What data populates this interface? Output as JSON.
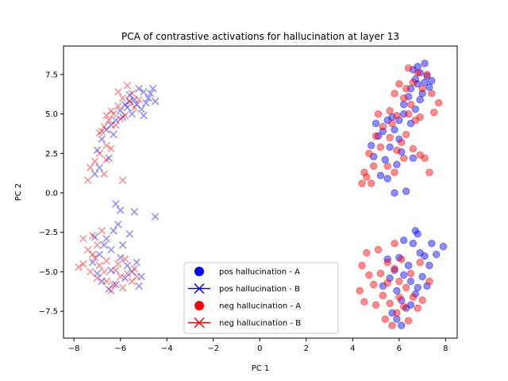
{
  "chart_data": {
    "type": "scatter",
    "title": "PCA of contrastive activations for hallucination at layer 13",
    "xlabel": "PC 1",
    "ylabel": "PC 2",
    "xlim": [
      -8.45,
      8.5
    ],
    "ylim": [
      -9.2,
      9.3
    ],
    "xticks": [
      -8,
      -6,
      -4,
      -2,
      0,
      2,
      4,
      6,
      8
    ],
    "yticks": [
      -7.5,
      -5.0,
      -2.5,
      0.0,
      2.5,
      5.0,
      7.5
    ],
    "grid": false,
    "legend_position": "lower-center",
    "series": [
      {
        "name": "pos hallucination - A",
        "marker": "circle",
        "color": "#0000ff",
        "points": [
          [
            6.7,
            7.2
          ],
          [
            6.9,
            7.6
          ],
          [
            7.1,
            7.0
          ],
          [
            6.5,
            6.6
          ],
          [
            6.8,
            6.9
          ],
          [
            7.2,
            7.4
          ],
          [
            6.6,
            7.8
          ],
          [
            7.0,
            6.3
          ],
          [
            6.4,
            6.1
          ],
          [
            6.9,
            5.9
          ],
          [
            7.3,
            6.7
          ],
          [
            6.2,
            5.6
          ],
          [
            6.7,
            5.3
          ],
          [
            7.1,
            8.2
          ],
          [
            6.8,
            8.0
          ],
          [
            7.4,
            7.1
          ],
          [
            5.5,
            4.6
          ],
          [
            5.3,
            3.9
          ],
          [
            5.8,
            4.0
          ],
          [
            6.0,
            3.4
          ],
          [
            5.1,
            3.6
          ],
          [
            5.6,
            2.9
          ],
          [
            4.9,
            2.3
          ],
          [
            5.4,
            2.1
          ],
          [
            5.9,
            1.8
          ],
          [
            6.1,
            2.6
          ],
          [
            5.2,
            1.1
          ],
          [
            6.3,
            0.1
          ],
          [
            5.8,
            0.0
          ],
          [
            6.5,
            4.4
          ],
          [
            6.2,
            5.0
          ],
          [
            5.0,
            4.4
          ],
          [
            5.7,
            4.8
          ],
          [
            4.8,
            3.0
          ],
          [
            5.5,
            0.9
          ],
          [
            6.0,
            4.6
          ],
          [
            6.6,
            2.2
          ],
          [
            6.8,
            -2.6
          ],
          [
            6.6,
            -3.2
          ],
          [
            6.9,
            -3.8
          ],
          [
            7.1,
            -4.0
          ],
          [
            6.4,
            -4.6
          ],
          [
            6.2,
            -5.2
          ],
          [
            6.5,
            -5.6
          ],
          [
            6.8,
            -6.0
          ],
          [
            7.0,
            -5.3
          ],
          [
            7.3,
            -4.6
          ],
          [
            7.6,
            -3.9
          ],
          [
            7.9,
            -3.4
          ],
          [
            6.0,
            -4.1
          ],
          [
            5.8,
            -4.9
          ],
          [
            5.6,
            -5.4
          ],
          [
            5.9,
            -6.2
          ],
          [
            6.1,
            -6.8
          ],
          [
            6.3,
            -7.3
          ],
          [
            6.5,
            -7.1
          ],
          [
            6.7,
            -6.4
          ],
          [
            5.7,
            -7.6
          ],
          [
            5.9,
            -8.0
          ],
          [
            6.1,
            -8.4
          ],
          [
            6.7,
            -2.4
          ],
          [
            7.2,
            -5.9
          ],
          [
            5.5,
            -4.2
          ],
          [
            5.3,
            -5.9
          ],
          [
            6.2,
            -3.0
          ],
          [
            7.4,
            -3.2
          ]
        ]
      },
      {
        "name": "pos hallucination - B",
        "marker": "x",
        "color": "#0000ff",
        "points": [
          [
            -5.6,
            6.2
          ],
          [
            -5.4,
            5.9
          ],
          [
            -5.2,
            6.6
          ],
          [
            -5.0,
            6.4
          ],
          [
            -4.8,
            6.0
          ],
          [
            -4.6,
            6.6
          ],
          [
            -5.8,
            5.6
          ],
          [
            -6.0,
            5.2
          ],
          [
            -5.7,
            5.4
          ],
          [
            -5.5,
            5.0
          ],
          [
            -5.3,
            5.6
          ],
          [
            -6.2,
            4.6
          ],
          [
            -6.4,
            4.3
          ],
          [
            -6.6,
            4.0
          ],
          [
            -5.9,
            4.8
          ],
          [
            -5.1,
            5.3
          ],
          [
            -4.9,
            5.7
          ],
          [
            -4.5,
            5.8
          ],
          [
            -6.8,
            3.4
          ],
          [
            -7.0,
            2.7
          ],
          [
            -6.5,
            2.2
          ],
          [
            -6.9,
            1.6
          ],
          [
            -7.1,
            1.2
          ],
          [
            -6.3,
            3.7
          ],
          [
            -5.0,
            4.9
          ],
          [
            -4.7,
            6.3
          ],
          [
            -5.6,
            5.8
          ],
          [
            -6.2,
            -0.7
          ],
          [
            -6.0,
            -1.1
          ],
          [
            -5.4,
            -1.2
          ],
          [
            -6.3,
            -2.4
          ],
          [
            -6.6,
            -2.9
          ],
          [
            -6.4,
            -3.6
          ],
          [
            -6.0,
            -4.1
          ],
          [
            -5.7,
            -4.6
          ],
          [
            -5.5,
            -5.0
          ],
          [
            -5.8,
            -5.4
          ],
          [
            -6.2,
            -5.8
          ],
          [
            -6.5,
            -6.1
          ],
          [
            -6.8,
            -5.6
          ],
          [
            -7.0,
            -5.1
          ],
          [
            -7.2,
            -4.4
          ],
          [
            -6.9,
            -3.9
          ],
          [
            -6.7,
            -3.3
          ],
          [
            -7.1,
            -2.8
          ],
          [
            -4.5,
            -1.5
          ],
          [
            -5.1,
            -5.3
          ],
          [
            -5.3,
            -4.4
          ],
          [
            -5.9,
            -3.3
          ],
          [
            -6.1,
            -2.0
          ],
          [
            -5.6,
            -2.6
          ],
          [
            -6.4,
            -4.9
          ],
          [
            -5.2,
            -5.9
          ]
        ]
      },
      {
        "name": "neg hallucination - A",
        "marker": "circle",
        "color": "#ff0000",
        "points": [
          [
            6.6,
            7.0
          ],
          [
            6.3,
            6.6
          ],
          [
            6.0,
            6.9
          ],
          [
            5.8,
            6.3
          ],
          [
            6.2,
            6.0
          ],
          [
            6.5,
            5.6
          ],
          [
            7.0,
            6.6
          ],
          [
            7.4,
            6.3
          ],
          [
            7.7,
            5.7
          ],
          [
            7.5,
            5.1
          ],
          [
            6.9,
            4.8
          ],
          [
            6.4,
            5.0
          ],
          [
            5.9,
            4.9
          ],
          [
            5.6,
            5.2
          ],
          [
            6.8,
            7.6
          ],
          [
            6.4,
            7.9
          ],
          [
            7.2,
            7.5
          ],
          [
            4.8,
            0.6
          ],
          [
            4.9,
            1.7
          ],
          [
            4.5,
            1.3
          ],
          [
            4.7,
            2.5
          ],
          [
            5.2,
            2.9
          ],
          [
            5.0,
            3.6
          ],
          [
            5.3,
            4.2
          ],
          [
            5.6,
            3.5
          ],
          [
            5.9,
            2.7
          ],
          [
            6.2,
            2.2
          ],
          [
            6.6,
            2.8
          ],
          [
            6.9,
            2.4
          ],
          [
            7.1,
            2.2
          ],
          [
            6.3,
            3.7
          ],
          [
            5.5,
            1.7
          ],
          [
            5.8,
            1.3
          ],
          [
            7.3,
            1.3
          ],
          [
            4.6,
            1.0
          ],
          [
            5.1,
            5.0
          ],
          [
            5.7,
            4.4
          ],
          [
            6.1,
            3.2
          ],
          [
            6.7,
            4.6
          ],
          [
            4.4,
            0.6
          ],
          [
            4.6,
            -3.8
          ],
          [
            4.4,
            -4.6
          ],
          [
            4.7,
            -5.2
          ],
          [
            4.9,
            -5.8
          ],
          [
            5.2,
            -5.1
          ],
          [
            5.5,
            -4.4
          ],
          [
            5.8,
            -4.8
          ],
          [
            6.0,
            -5.6
          ],
          [
            6.3,
            -6.0
          ],
          [
            6.6,
            -6.6
          ],
          [
            6.2,
            -7.2
          ],
          [
            5.9,
            -7.6
          ],
          [
            5.6,
            -7.0
          ],
          [
            5.3,
            -6.5
          ],
          [
            5.0,
            -7.1
          ],
          [
            5.4,
            -8.0
          ],
          [
            5.7,
            -8.4
          ],
          [
            6.4,
            -8.1
          ],
          [
            6.8,
            -7.3
          ],
          [
            7.0,
            -6.8
          ],
          [
            4.3,
            -6.2
          ],
          [
            4.5,
            -6.9
          ],
          [
            5.8,
            -3.2
          ],
          [
            6.1,
            -4.2
          ],
          [
            6.5,
            -5.1
          ],
          [
            6.9,
            -4.4
          ],
          [
            7.3,
            -5.6
          ],
          [
            5.1,
            -3.6
          ],
          [
            6.0,
            -6.6
          ],
          [
            5.5,
            -5.7
          ]
        ]
      },
      {
        "name": "neg hallucination - B",
        "marker": "x",
        "color": "#ff0000",
        "points": [
          [
            -5.7,
            6.8
          ],
          [
            -5.5,
            6.3
          ],
          [
            -5.9,
            6.0
          ],
          [
            -6.1,
            5.5
          ],
          [
            -6.3,
            5.0
          ],
          [
            -6.5,
            4.6
          ],
          [
            -6.7,
            4.2
          ],
          [
            -6.9,
            3.8
          ],
          [
            -6.2,
            4.3
          ],
          [
            -5.8,
            4.9
          ],
          [
            -5.4,
            5.4
          ],
          [
            -5.2,
            5.9
          ],
          [
            -6.0,
            4.7
          ],
          [
            -6.6,
            3.0
          ],
          [
            -6.9,
            2.5
          ],
          [
            -7.1,
            2.0
          ],
          [
            -7.3,
            1.6
          ],
          [
            -6.6,
            2.1
          ],
          [
            -6.4,
            2.8
          ],
          [
            -7.4,
            0.8
          ],
          [
            -6.7,
            1.2
          ],
          [
            -5.9,
            0.8
          ],
          [
            -6.8,
            3.9
          ],
          [
            -6.4,
            5.2
          ],
          [
            -5.6,
            5.8
          ],
          [
            -6.1,
            6.4
          ],
          [
            -6.6,
            4.9
          ],
          [
            -7.2,
            -2.7
          ],
          [
            -7.0,
            -3.3
          ],
          [
            -7.4,
            -3.6
          ],
          [
            -7.1,
            -4.1
          ],
          [
            -6.9,
            -4.6
          ],
          [
            -7.3,
            -5.0
          ],
          [
            -7.6,
            -4.5
          ],
          [
            -7.0,
            -5.4
          ],
          [
            -6.6,
            -5.6
          ],
          [
            -6.3,
            -5.8
          ],
          [
            -6.0,
            -5.3
          ],
          [
            -5.7,
            -5.1
          ],
          [
            -5.5,
            -5.6
          ],
          [
            -5.9,
            -6.0
          ],
          [
            -6.4,
            -6.2
          ],
          [
            -6.2,
            -4.9
          ],
          [
            -6.6,
            -4.3
          ],
          [
            -6.8,
            -2.4
          ],
          [
            -7.6,
            -2.9
          ],
          [
            -7.8,
            -4.7
          ],
          [
            -5.4,
            -4.8
          ],
          [
            -5.3,
            -5.3
          ],
          [
            -6.1,
            -4.5
          ],
          [
            -6.7,
            -5.0
          ],
          [
            -7.2,
            -3.9
          ],
          [
            -5.8,
            -4.2
          ]
        ]
      }
    ]
  }
}
